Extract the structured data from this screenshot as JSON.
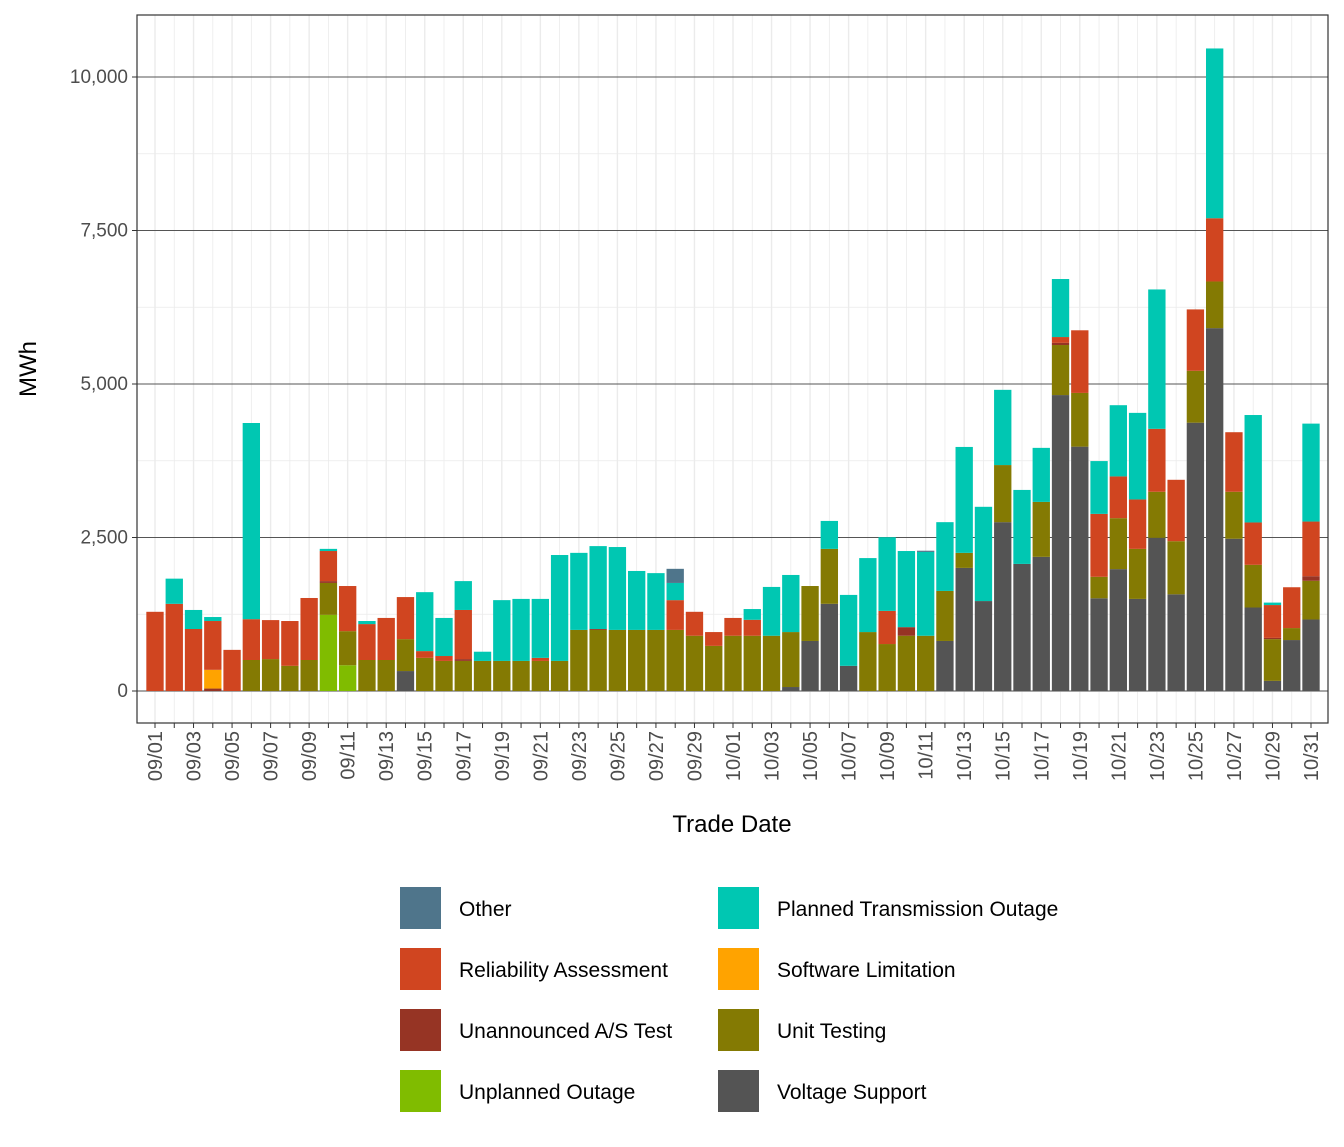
{
  "chart_data": {
    "type": "bar",
    "stacked": true,
    "xlabel": "Trade Date",
    "ylabel": "MWh",
    "ylim": [
      -521,
      11010
    ],
    "yticks": [
      0,
      2500,
      5000,
      7500,
      10000
    ],
    "ytick_labels": [
      "0",
      "2,500",
      "5,000",
      "7,500",
      "10,000"
    ],
    "grid": true,
    "legend_position": "bottom",
    "categories": [
      "09/01",
      "09/02",
      "09/03",
      "09/04",
      "09/05",
      "09/06",
      "09/07",
      "09/08",
      "09/09",
      "09/10",
      "09/11",
      "09/12",
      "09/13",
      "09/14",
      "09/15",
      "09/16",
      "09/17",
      "09/18",
      "09/19",
      "09/20",
      "09/21",
      "09/22",
      "09/23",
      "09/24",
      "09/25",
      "09/26",
      "09/27",
      "09/28",
      "09/29",
      "09/30",
      "10/01",
      "10/02",
      "10/03",
      "10/04",
      "10/05",
      "10/06",
      "10/07",
      "10/08",
      "10/09",
      "10/10",
      "10/11",
      "10/12",
      "10/13",
      "10/14",
      "10/15",
      "10/16",
      "10/17",
      "10/18",
      "10/19",
      "10/20",
      "10/21",
      "10/22",
      "10/23",
      "10/24",
      "10/25",
      "10/26",
      "10/27",
      "10/28",
      "10/29",
      "10/30",
      "10/31"
    ],
    "xtick_labels": [
      "09/01",
      "09/03",
      "09/05",
      "09/07",
      "09/09",
      "09/11",
      "09/13",
      "09/15",
      "09/17",
      "09/19",
      "09/21",
      "09/23",
      "09/25",
      "09/27",
      "09/29",
      "10/01",
      "10/03",
      "10/05",
      "10/07",
      "10/09",
      "10/11",
      "10/13",
      "10/15",
      "10/17",
      "10/19",
      "10/21",
      "10/23",
      "10/25",
      "10/27",
      "10/29",
      "10/31"
    ],
    "series": [
      {
        "name": "Voltage Support",
        "color": "#545454",
        "values": [
          0,
          0,
          0,
          0,
          0,
          0,
          0,
          0,
          0,
          0,
          0,
          0,
          0,
          325,
          0,
          0,
          0,
          0,
          0,
          0,
          0,
          0,
          0,
          0,
          0,
          0,
          0,
          0,
          0,
          0,
          0,
          0,
          0,
          65,
          815,
          1420,
          410,
          0,
          0,
          0,
          0,
          815,
          2005,
          1465,
          2750,
          2070,
          2185,
          4820,
          3980,
          1510,
          1985,
          1500,
          2495,
          1575,
          4370,
          5910,
          2480,
          1360,
          165,
          830,
          1165
        ]
      },
      {
        "name": "Unplanned Outage",
        "color": "#80BC00",
        "values": [
          0,
          0,
          0,
          0,
          0,
          0,
          0,
          0,
          0,
          1240,
          420,
          0,
          0,
          0,
          0,
          0,
          0,
          0,
          0,
          0,
          0,
          0,
          0,
          0,
          0,
          0,
          0,
          0,
          0,
          0,
          0,
          0,
          0,
          0,
          0,
          0,
          0,
          0,
          0,
          0,
          0,
          0,
          0,
          0,
          0,
          0,
          0,
          0,
          0,
          0,
          0,
          0,
          0,
          0,
          0,
          0,
          0,
          0,
          0,
          0,
          0
        ]
      },
      {
        "name": "Unit Testing",
        "color": "#847A03",
        "values": [
          0,
          0,
          0,
          0,
          0,
          505,
          520,
          410,
          505,
          520,
          555,
          505,
          505,
          520,
          540,
          490,
          490,
          490,
          490,
          490,
          490,
          490,
          995,
          995,
          995,
          995,
          995,
          995,
          900,
          735,
          900,
          900,
          900,
          895,
          895,
          895,
          0,
          960,
          765,
          900,
          900,
          815,
          245,
          0,
          930,
          0,
          895,
          815,
          875,
          350,
          830,
          815,
          750,
          865,
          845,
          760,
          765,
          695,
          680,
          195,
          630
        ]
      },
      {
        "name": "Unannounced A/S Test",
        "color": "#963424",
        "values": [
          0,
          0,
          0,
          40,
          0,
          0,
          0,
          0,
          0,
          30,
          0,
          0,
          0,
          0,
          0,
          0,
          30,
          0,
          0,
          0,
          0,
          0,
          0,
          15,
          0,
          0,
          0,
          0,
          0,
          0,
          0,
          0,
          0,
          0,
          0,
          0,
          0,
          0,
          0,
          140,
          0,
          0,
          0,
          0,
          0,
          0,
          0,
          35,
          0,
          0,
          0,
          0,
          0,
          0,
          0,
          0,
          0,
          0,
          20,
          0,
          75
        ]
      },
      {
        "name": "Software Limitation",
        "color": "#FFA300",
        "values": [
          0,
          0,
          0,
          305,
          0,
          0,
          0,
          0,
          0,
          0,
          0,
          0,
          0,
          0,
          0,
          0,
          0,
          0,
          0,
          0,
          0,
          0,
          0,
          0,
          0,
          0,
          0,
          0,
          0,
          0,
          0,
          0,
          0,
          0,
          0,
          0,
          0,
          0,
          0,
          0,
          0,
          0,
          0,
          0,
          0,
          0,
          0,
          0,
          0,
          0,
          0,
          0,
          0,
          0,
          0,
          0,
          0,
          0,
          0,
          0,
          0
        ]
      },
      {
        "name": "Reliability Assessment",
        "color": "#D04520",
        "values": [
          1290,
          1420,
          1010,
          795,
          670,
          665,
          635,
          730,
          1010,
          490,
          735,
          585,
          685,
          685,
          110,
          80,
          800,
          0,
          0,
          0,
          50,
          0,
          0,
          0,
          0,
          0,
          0,
          485,
          390,
          225,
          290,
          260,
          0,
          0,
          0,
          0,
          0,
          0,
          540,
          0,
          0,
          0,
          0,
          0,
          0,
          0,
          0,
          95,
          1020,
          1025,
          680,
          805,
          1025,
          1000,
          1000,
          1030,
          970,
          690,
          535,
          665,
          890
        ]
      },
      {
        "name": "Planned Transmission Outage",
        "color": "#00C7B2",
        "values": [
          0,
          410,
          310,
          65,
          0,
          3195,
          0,
          0,
          0,
          35,
          0,
          50,
          0,
          0,
          960,
          620,
          470,
          150,
          990,
          1010,
          960,
          1725,
          1255,
          1350,
          1350,
          960,
          925,
          280,
          0,
          0,
          0,
          175,
          795,
          930,
          0,
          455,
          1155,
          1205,
          1200,
          1240,
          1365,
          1120,
          1725,
          1535,
          1225,
          1205,
          880,
          945,
          0,
          860,
          1160,
          1410,
          2270,
          0,
          0,
          2765,
          0,
          1750,
          40,
          0,
          1595
        ]
      },
      {
        "name": "Other",
        "color": "#4F758B",
        "values": [
          0,
          0,
          0,
          0,
          0,
          0,
          0,
          0,
          0,
          0,
          0,
          0,
          0,
          0,
          0,
          0,
          0,
          0,
          0,
          0,
          0,
          0,
          0,
          0,
          0,
          0,
          0,
          230,
          0,
          0,
          0,
          0,
          0,
          0,
          0,
          0,
          0,
          0,
          0,
          0,
          20,
          0,
          0,
          0,
          0,
          0,
          0,
          0,
          0,
          0,
          0,
          0,
          0,
          0,
          0,
          0,
          0,
          0,
          0,
          0,
          0
        ]
      }
    ],
    "legend": [
      {
        "name": "Other",
        "color": "#4F758B"
      },
      {
        "name": "Reliability Assessment",
        "color": "#D04520"
      },
      {
        "name": "Unannounced A/S Test",
        "color": "#963424"
      },
      {
        "name": "Unplanned Outage",
        "color": "#80BC00"
      },
      {
        "name": "Planned Transmission Outage",
        "color": "#00C7B2"
      },
      {
        "name": "Software Limitation",
        "color": "#FFA300"
      },
      {
        "name": "Unit Testing",
        "color": "#847A03"
      },
      {
        "name": "Voltage Support",
        "color": "#545454"
      }
    ]
  }
}
